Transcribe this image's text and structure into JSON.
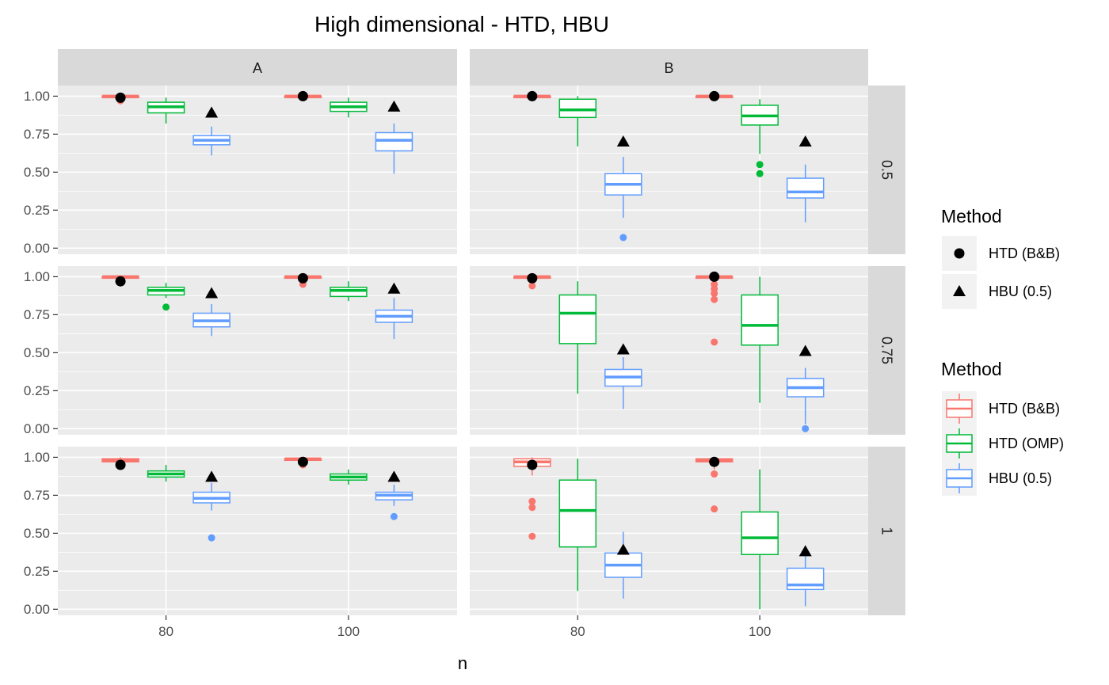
{
  "chart_data": {
    "type": "box",
    "title": "High dimensional  -  HTD, HBU",
    "xlabel": "n",
    "ylabel": "",
    "ylim": [
      -0.04,
      1.07
    ],
    "yticks": [
      "0.00",
      "0.25",
      "0.50",
      "0.75",
      "1.00"
    ],
    "x": [
      "80",
      "100"
    ],
    "facet_cols": [
      "A",
      "B"
    ],
    "facet_rows": [
      "0.5",
      "0.75",
      "1"
    ],
    "grid": true,
    "colors": {
      "HTD (B&B)": "#F8766D",
      "HTD (OMP)": "#00BA38",
      "HBU (0.5)": "#619CFF",
      "panel_bg": "#EBEBEB",
      "strip_bg": "#D9D9D9"
    },
    "legends": [
      {
        "title": "Method",
        "items": [
          {
            "label": "HTD (B&B)",
            "shape": "circle"
          },
          {
            "label": "HBU (0.5)",
            "shape": "triangle"
          }
        ]
      },
      {
        "title": "Method",
        "items": [
          {
            "label": "HTD (B&B)",
            "color": "#F8766D"
          },
          {
            "label": "HTD (OMP)",
            "color": "#00BA38"
          },
          {
            "label": "HBU (0.5)",
            "color": "#619CFF"
          }
        ]
      }
    ],
    "legend_position": "right",
    "panels": [
      {
        "col": "A",
        "row": "0.5",
        "groups": [
          {
            "x": "80",
            "boxes": [
              {
                "method": "HTD (B&B)",
                "q1": 0.99,
                "median": 1.0,
                "q3": 1.0,
                "lower": 0.98,
                "upper": 1.0,
                "outliers": [
                  0.97
                ]
              },
              {
                "method": "HTD (OMP)",
                "q1": 0.89,
                "median": 0.93,
                "q3": 0.96,
                "lower": 0.82,
                "upper": 0.99,
                "outliers": []
              },
              {
                "method": "HBU (0.5)",
                "q1": 0.68,
                "median": 0.71,
                "q3": 0.74,
                "lower": 0.61,
                "upper": 0.8,
                "outliers": []
              }
            ],
            "points": {
              "HTD (B&B)": 0.99,
              "HBU (0.5)": 0.89
            }
          },
          {
            "x": "100",
            "boxes": [
              {
                "method": "HTD (B&B)",
                "q1": 0.99,
                "median": 1.0,
                "q3": 1.0,
                "lower": 0.98,
                "upper": 1.0,
                "outliers": []
              },
              {
                "method": "HTD (OMP)",
                "q1": 0.9,
                "median": 0.93,
                "q3": 0.96,
                "lower": 0.86,
                "upper": 0.99,
                "outliers": []
              },
              {
                "method": "HBU (0.5)",
                "q1": 0.64,
                "median": 0.71,
                "q3": 0.76,
                "lower": 0.49,
                "upper": 0.82,
                "outliers": []
              }
            ],
            "points": {
              "HTD (B&B)": 1.0,
              "HBU (0.5)": 0.93
            }
          }
        ]
      },
      {
        "col": "B",
        "row": "0.5",
        "groups": [
          {
            "x": "80",
            "boxes": [
              {
                "method": "HTD (B&B)",
                "q1": 0.99,
                "median": 1.0,
                "q3": 1.0,
                "lower": 0.98,
                "upper": 1.0,
                "outliers": []
              },
              {
                "method": "HTD (OMP)",
                "q1": 0.86,
                "median": 0.91,
                "q3": 0.98,
                "lower": 0.67,
                "upper": 1.0,
                "outliers": []
              },
              {
                "method": "HBU (0.5)",
                "q1": 0.35,
                "median": 0.42,
                "q3": 0.49,
                "lower": 0.2,
                "upper": 0.6,
                "outliers": [
                  0.07
                ]
              }
            ],
            "points": {
              "HTD (B&B)": 1.0,
              "HBU (0.5)": 0.7
            }
          },
          {
            "x": "100",
            "boxes": [
              {
                "method": "HTD (B&B)",
                "q1": 0.99,
                "median": 1.0,
                "q3": 1.0,
                "lower": 0.98,
                "upper": 1.0,
                "outliers": []
              },
              {
                "method": "HTD (OMP)",
                "q1": 0.81,
                "median": 0.87,
                "q3": 0.94,
                "lower": 0.62,
                "upper": 0.98,
                "outliers": [
                  0.55,
                  0.49
                ]
              },
              {
                "method": "HBU (0.5)",
                "q1": 0.33,
                "median": 0.37,
                "q3": 0.46,
                "lower": 0.17,
                "upper": 0.55,
                "outliers": []
              }
            ],
            "points": {
              "HTD (B&B)": 1.0,
              "HBU (0.5)": 0.7
            }
          }
        ]
      },
      {
        "col": "A",
        "row": "0.75",
        "groups": [
          {
            "x": "80",
            "boxes": [
              {
                "method": "HTD (B&B)",
                "q1": 0.99,
                "median": 1.0,
                "q3": 1.0,
                "lower": 0.98,
                "upper": 1.0,
                "outliers": []
              },
              {
                "method": "HTD (OMP)",
                "q1": 0.88,
                "median": 0.91,
                "q3": 0.93,
                "lower": 0.86,
                "upper": 0.96,
                "outliers": [
                  0.8
                ]
              },
              {
                "method": "HBU (0.5)",
                "q1": 0.67,
                "median": 0.71,
                "q3": 0.76,
                "lower": 0.61,
                "upper": 0.82,
                "outliers": []
              }
            ],
            "points": {
              "HTD (B&B)": 0.97,
              "HBU (0.5)": 0.89
            }
          },
          {
            "x": "100",
            "boxes": [
              {
                "method": "HTD (B&B)",
                "q1": 0.99,
                "median": 1.0,
                "q3": 1.0,
                "lower": 0.97,
                "upper": 1.0,
                "outliers": [
                  0.95
                ]
              },
              {
                "method": "HTD (OMP)",
                "q1": 0.87,
                "median": 0.91,
                "q3": 0.93,
                "lower": 0.84,
                "upper": 0.97,
                "outliers": []
              },
              {
                "method": "HBU (0.5)",
                "q1": 0.7,
                "median": 0.74,
                "q3": 0.78,
                "lower": 0.59,
                "upper": 0.86,
                "outliers": []
              }
            ],
            "points": {
              "HTD (B&B)": 0.99,
              "HBU (0.5)": 0.92
            }
          }
        ]
      },
      {
        "col": "B",
        "row": "0.75",
        "groups": [
          {
            "x": "80",
            "boxes": [
              {
                "method": "HTD (B&B)",
                "q1": 0.99,
                "median": 1.0,
                "q3": 1.0,
                "lower": 0.96,
                "upper": 1.0,
                "outliers": [
                  0.94
                ]
              },
              {
                "method": "HTD (OMP)",
                "q1": 0.56,
                "median": 0.76,
                "q3": 0.88,
                "lower": 0.23,
                "upper": 0.97,
                "outliers": []
              },
              {
                "method": "HBU (0.5)",
                "q1": 0.28,
                "median": 0.34,
                "q3": 0.39,
                "lower": 0.13,
                "upper": 0.47,
                "outliers": []
              }
            ],
            "points": {
              "HTD (B&B)": 0.99,
              "HBU (0.5)": 0.52
            }
          },
          {
            "x": "100",
            "boxes": [
              {
                "method": "HTD (B&B)",
                "q1": 0.99,
                "median": 1.0,
                "q3": 1.0,
                "lower": 0.97,
                "upper": 1.0,
                "outliers": [
                  0.95,
                  0.92,
                  0.89,
                  0.85,
                  0.57
                ]
              },
              {
                "method": "HTD (OMP)",
                "q1": 0.55,
                "median": 0.68,
                "q3": 0.88,
                "lower": 0.17,
                "upper": 1.0,
                "outliers": []
              },
              {
                "method": "HBU (0.5)",
                "q1": 0.21,
                "median": 0.27,
                "q3": 0.33,
                "lower": 0.03,
                "upper": 0.4,
                "outliers": [
                  0.0
                ]
              }
            ],
            "points": {
              "HTD (B&B)": 1.0,
              "HBU (0.5)": 0.51
            }
          }
        ]
      },
      {
        "col": "A",
        "row": "1",
        "groups": [
          {
            "x": "80",
            "boxes": [
              {
                "method": "HTD (B&B)",
                "q1": 0.97,
                "median": 0.98,
                "q3": 0.99,
                "lower": 0.96,
                "upper": 1.0,
                "outliers": []
              },
              {
                "method": "HTD (OMP)",
                "q1": 0.87,
                "median": 0.89,
                "q3": 0.91,
                "lower": 0.84,
                "upper": 0.95,
                "outliers": []
              },
              {
                "method": "HBU (0.5)",
                "q1": 0.7,
                "median": 0.73,
                "q3": 0.77,
                "lower": 0.65,
                "upper": 0.83,
                "outliers": [
                  0.47
                ]
              }
            ],
            "points": {
              "HTD (B&B)": 0.95,
              "HBU (0.5)": 0.87
            }
          },
          {
            "x": "100",
            "boxes": [
              {
                "method": "HTD (B&B)",
                "q1": 0.98,
                "median": 0.99,
                "q3": 0.99,
                "lower": 0.96,
                "upper": 1.0,
                "outliers": [
                  0.95
                ]
              },
              {
                "method": "HTD (OMP)",
                "q1": 0.85,
                "median": 0.87,
                "q3": 0.89,
                "lower": 0.82,
                "upper": 0.92,
                "outliers": []
              },
              {
                "method": "HBU (0.5)",
                "q1": 0.72,
                "median": 0.75,
                "q3": 0.77,
                "lower": 0.68,
                "upper": 0.82,
                "outliers": [
                  0.61
                ]
              }
            ],
            "points": {
              "HTD (B&B)": 0.97,
              "HBU (0.5)": 0.87
            }
          }
        ]
      },
      {
        "col": "B",
        "row": "1",
        "groups": [
          {
            "x": "80",
            "boxes": [
              {
                "method": "HTD (B&B)",
                "q1": 0.94,
                "median": 0.97,
                "q3": 0.99,
                "lower": 0.88,
                "upper": 1.0,
                "outliers": [
                  0.71,
                  0.67,
                  0.48
                ]
              },
              {
                "method": "HTD (OMP)",
                "q1": 0.41,
                "median": 0.65,
                "q3": 0.85,
                "lower": 0.12,
                "upper": 0.99,
                "outliers": []
              },
              {
                "method": "HBU (0.5)",
                "q1": 0.21,
                "median": 0.29,
                "q3": 0.37,
                "lower": 0.07,
                "upper": 0.51,
                "outliers": []
              }
            ],
            "points": {
              "HTD (B&B)": 0.95,
              "HBU (0.5)": 0.39
            }
          },
          {
            "x": "100",
            "boxes": [
              {
                "method": "HTD (B&B)",
                "q1": 0.97,
                "median": 0.98,
                "q3": 0.99,
                "lower": 0.92,
                "upper": 1.0,
                "outliers": [
                  0.89,
                  0.66
                ]
              },
              {
                "method": "HTD (OMP)",
                "q1": 0.36,
                "median": 0.47,
                "q3": 0.64,
                "lower": 0.0,
                "upper": 0.92,
                "outliers": []
              },
              {
                "method": "HBU (0.5)",
                "q1": 0.13,
                "median": 0.16,
                "q3": 0.27,
                "lower": 0.02,
                "upper": 0.35,
                "outliers": []
              }
            ],
            "points": {
              "HTD (B&B)": 0.97,
              "HBU (0.5)": 0.38
            }
          }
        ]
      }
    ]
  }
}
